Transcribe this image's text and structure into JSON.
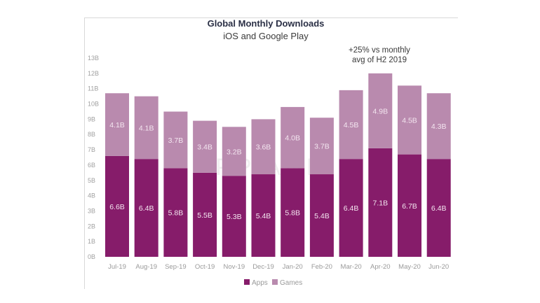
{
  "chart_data": {
    "type": "bar",
    "stacked": true,
    "title": "Global Monthly Downloads",
    "subtitle": "iOS and Google Play",
    "annotation": [
      "+25% vs monthly",
      "avg of H2 2019"
    ],
    "annotation_target": "Apr-20",
    "xlabel": "",
    "ylabel": "",
    "ylim": [
      0,
      13
    ],
    "yticks": [
      0,
      1,
      2,
      3,
      4,
      5,
      6,
      7,
      8,
      9,
      10,
      11,
      12,
      13
    ],
    "ytick_labels": [
      "0B",
      "1B",
      "2B",
      "3B",
      "4B",
      "5B",
      "6B",
      "7B",
      "8B",
      "9B",
      "10B",
      "11B",
      "12B",
      "13B"
    ],
    "categories": [
      "Jul-19",
      "Aug-19",
      "Sep-19",
      "Oct-19",
      "Nov-19",
      "Dec-19",
      "Jan-20",
      "Feb-20",
      "Mar-20",
      "Apr-20",
      "May-20",
      "Jun-20"
    ],
    "series": [
      {
        "name": "Apps",
        "color": "#861c6a",
        "values": [
          6.6,
          6.4,
          5.8,
          5.5,
          5.3,
          5.4,
          5.8,
          5.4,
          6.4,
          7.1,
          6.7,
          6.4
        ],
        "labels": [
          "6.6B",
          "6.4B",
          "5.8B",
          "5.5B",
          "5.3B",
          "5.4B",
          "5.8B",
          "5.4B",
          "6.4B",
          "7.1B",
          "6.7B",
          "6.4B"
        ]
      },
      {
        "name": "Games",
        "color": "#b98aae",
        "values": [
          4.1,
          4.1,
          3.7,
          3.4,
          3.2,
          3.6,
          4.0,
          3.7,
          4.5,
          4.9,
          4.5,
          4.3
        ],
        "labels": [
          "4.1B",
          "4.1B",
          "3.7B",
          "3.4B",
          "3.2B",
          "3.6B",
          "4.0B",
          "3.7B",
          "4.5B",
          "4.9B",
          "4.5B",
          "4.3B"
        ]
      }
    ],
    "grid": false,
    "legend_position": "bottom-center",
    "watermark": "APP ANNIE"
  }
}
